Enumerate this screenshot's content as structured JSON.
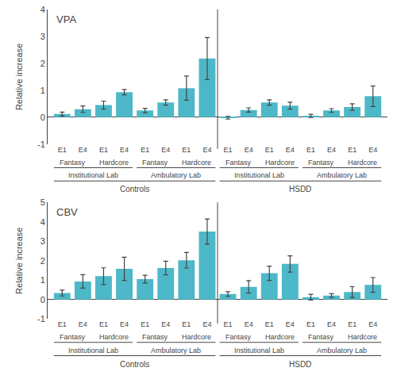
{
  "chart_data": [
    {
      "type": "bar",
      "title": "VPA",
      "y_label": "Relative increase",
      "color": "#4db8c8",
      "grid": false,
      "categories": [
        [
          "Controls",
          "Institutional Lab",
          "Fantasy",
          "E1"
        ],
        [
          "Controls",
          "Institutional Lab",
          "Fantasy",
          "E4"
        ],
        [
          "Controls",
          "Institutional Lab",
          "Hardcore",
          "E1"
        ],
        [
          "Controls",
          "Institutional Lab",
          "Hardcore",
          "E4"
        ],
        [
          "Controls",
          "Ambulatory Lab",
          "Fantasy",
          "E1"
        ],
        [
          "Controls",
          "Ambulatory Lab",
          "Fantasy",
          "E4"
        ],
        [
          "Controls",
          "Ambulatory Lab",
          "Hardcore",
          "E1"
        ],
        [
          "Controls",
          "Ambulatory Lab",
          "Hardcore",
          "E4"
        ],
        [
          "HSDD",
          "Institutional Lab",
          "Fantasy",
          "E1"
        ],
        [
          "HSDD",
          "Institutional Lab",
          "Fantasy",
          "E4"
        ],
        [
          "HSDD",
          "Institutional Lab",
          "Hardcore",
          "E1"
        ],
        [
          "HSDD",
          "Institutional Lab",
          "Hardcore",
          "E4"
        ],
        [
          "HSDD",
          "Ambulatory Lab",
          "Fantasy",
          "E1"
        ],
        [
          "HSDD",
          "Ambulatory Lab",
          "Fantasy",
          "E4"
        ],
        [
          "HSDD",
          "Ambulatory Lab",
          "Hardcore",
          "E1"
        ],
        [
          "HSDD",
          "Ambulatory Lab",
          "Hardcore",
          "E4"
        ]
      ],
      "values": [
        0.12,
        0.3,
        0.45,
        0.93,
        0.25,
        0.55,
        1.08,
        2.18,
        -0.02,
        0.27,
        0.55,
        0.43,
        0.05,
        0.25,
        0.38,
        0.78
      ],
      "errors": [
        0.07,
        0.12,
        0.15,
        0.1,
        0.08,
        0.1,
        0.45,
        0.78,
        0.05,
        0.08,
        0.1,
        0.13,
        0.06,
        0.07,
        0.12,
        0.38
      ],
      "ylim": [
        -1,
        4
      ],
      "yticks": [
        -1,
        0,
        1,
        2,
        3,
        4
      ]
    },
    {
      "type": "bar",
      "title": "CBV",
      "y_label": "Relative increase",
      "color": "#4db8c8",
      "grid": false,
      "categories": [
        [
          "Controls",
          "Institutional Lab",
          "Fantasy",
          "E1"
        ],
        [
          "Controls",
          "Institutional Lab",
          "Fantasy",
          "E4"
        ],
        [
          "Controls",
          "Institutional Lab",
          "Hardcore",
          "E1"
        ],
        [
          "Controls",
          "Institutional Lab",
          "Hardcore",
          "E4"
        ],
        [
          "Controls",
          "Ambulatory Lab",
          "Fantasy",
          "E1"
        ],
        [
          "Controls",
          "Ambulatory Lab",
          "Fantasy",
          "E4"
        ],
        [
          "Controls",
          "Ambulatory Lab",
          "Hardcore",
          "E1"
        ],
        [
          "Controls",
          "Ambulatory Lab",
          "Hardcore",
          "E4"
        ],
        [
          "HSDD",
          "Institutional Lab",
          "Fantasy",
          "E1"
        ],
        [
          "HSDD",
          "Institutional Lab",
          "Fantasy",
          "E4"
        ],
        [
          "HSDD",
          "Institutional Lab",
          "Hardcore",
          "E1"
        ],
        [
          "HSDD",
          "Institutional Lab",
          "Hardcore",
          "E4"
        ],
        [
          "HSDD",
          "Ambulatory Lab",
          "Fantasy",
          "E1"
        ],
        [
          "HSDD",
          "Ambulatory Lab",
          "Fantasy",
          "E4"
        ],
        [
          "HSDD",
          "Ambulatory Lab",
          "Hardcore",
          "E1"
        ],
        [
          "HSDD",
          "Ambulatory Lab",
          "Hardcore",
          "E4"
        ]
      ],
      "values": [
        0.33,
        0.93,
        1.2,
        1.58,
        1.05,
        1.62,
        2.02,
        3.5,
        0.28,
        0.65,
        1.35,
        1.83,
        0.12,
        0.2,
        0.38,
        0.75
      ],
      "errors": [
        0.15,
        0.35,
        0.43,
        0.6,
        0.2,
        0.35,
        0.4,
        0.65,
        0.12,
        0.32,
        0.37,
        0.42,
        0.15,
        0.1,
        0.28,
        0.38
      ],
      "ylim": [
        -1,
        5
      ],
      "yticks": [
        -1,
        0,
        1,
        2,
        3,
        4,
        5
      ]
    }
  ]
}
